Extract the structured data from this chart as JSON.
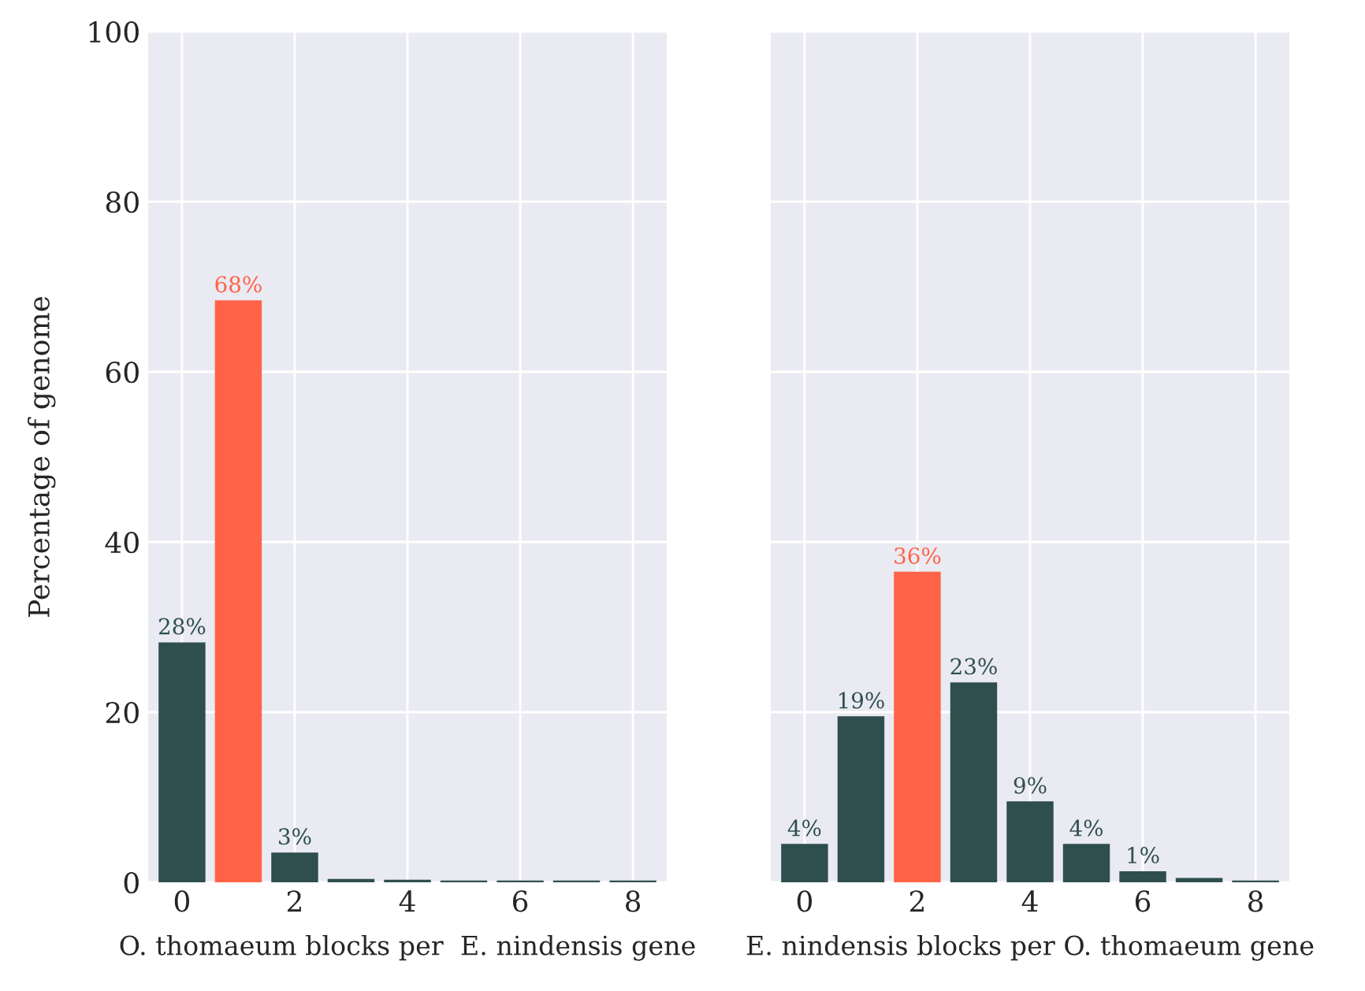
{
  "chart_data": [
    {
      "type": "bar",
      "xlabel": "O. thomaeum blocks per  E. nindensis gene",
      "ylabel": "Percentage of genome",
      "x": [
        0,
        1,
        2,
        3,
        4,
        5,
        6,
        7,
        8
      ],
      "values": [
        28.1,
        68.3,
        3.4,
        0.3,
        0.2,
        0.1,
        0.1,
        0.1,
        0.1
      ],
      "colors": [
        "#2f4f4f",
        "#ff6347",
        "#2f4f4f",
        "#2f4f4f",
        "#2f4f4f",
        "#2f4f4f",
        "#2f4f4f",
        "#2f4f4f",
        "#2f4f4f"
      ],
      "value_labels": [
        "28%",
        "68%",
        "3%",
        null,
        null,
        null,
        null,
        null,
        null
      ],
      "xlim": [
        -0.6,
        8.6
      ],
      "xticks": [
        0,
        2,
        4,
        6,
        8
      ],
      "ylim": [
        0,
        100
      ],
      "yticks": [
        0,
        20,
        40,
        60,
        80,
        100
      ],
      "grid": true
    },
    {
      "type": "bar",
      "xlabel": "E. nindensis blocks per O. thomaeum gene",
      "x": [
        0,
        1,
        2,
        3,
        4,
        5,
        6,
        7,
        8
      ],
      "values": [
        4.4,
        19.4,
        36.4,
        23.4,
        9.4,
        4.4,
        1.2,
        0.4,
        0.1
      ],
      "colors": [
        "#2f4f4f",
        "#2f4f4f",
        "#ff6347",
        "#2f4f4f",
        "#2f4f4f",
        "#2f4f4f",
        "#2f4f4f",
        "#2f4f4f",
        "#2f4f4f"
      ],
      "value_labels": [
        "4%",
        "19%",
        "36%",
        "23%",
        "9%",
        "4%",
        "1%",
        null,
        null
      ],
      "xlim": [
        -0.6,
        8.6
      ],
      "xticks": [
        0,
        2,
        4,
        6,
        8
      ],
      "ylim": [
        0,
        100
      ],
      "yticks": [
        0,
        20,
        40,
        60,
        80,
        100
      ],
      "grid": true,
      "tick_labels": "x"
    }
  ]
}
